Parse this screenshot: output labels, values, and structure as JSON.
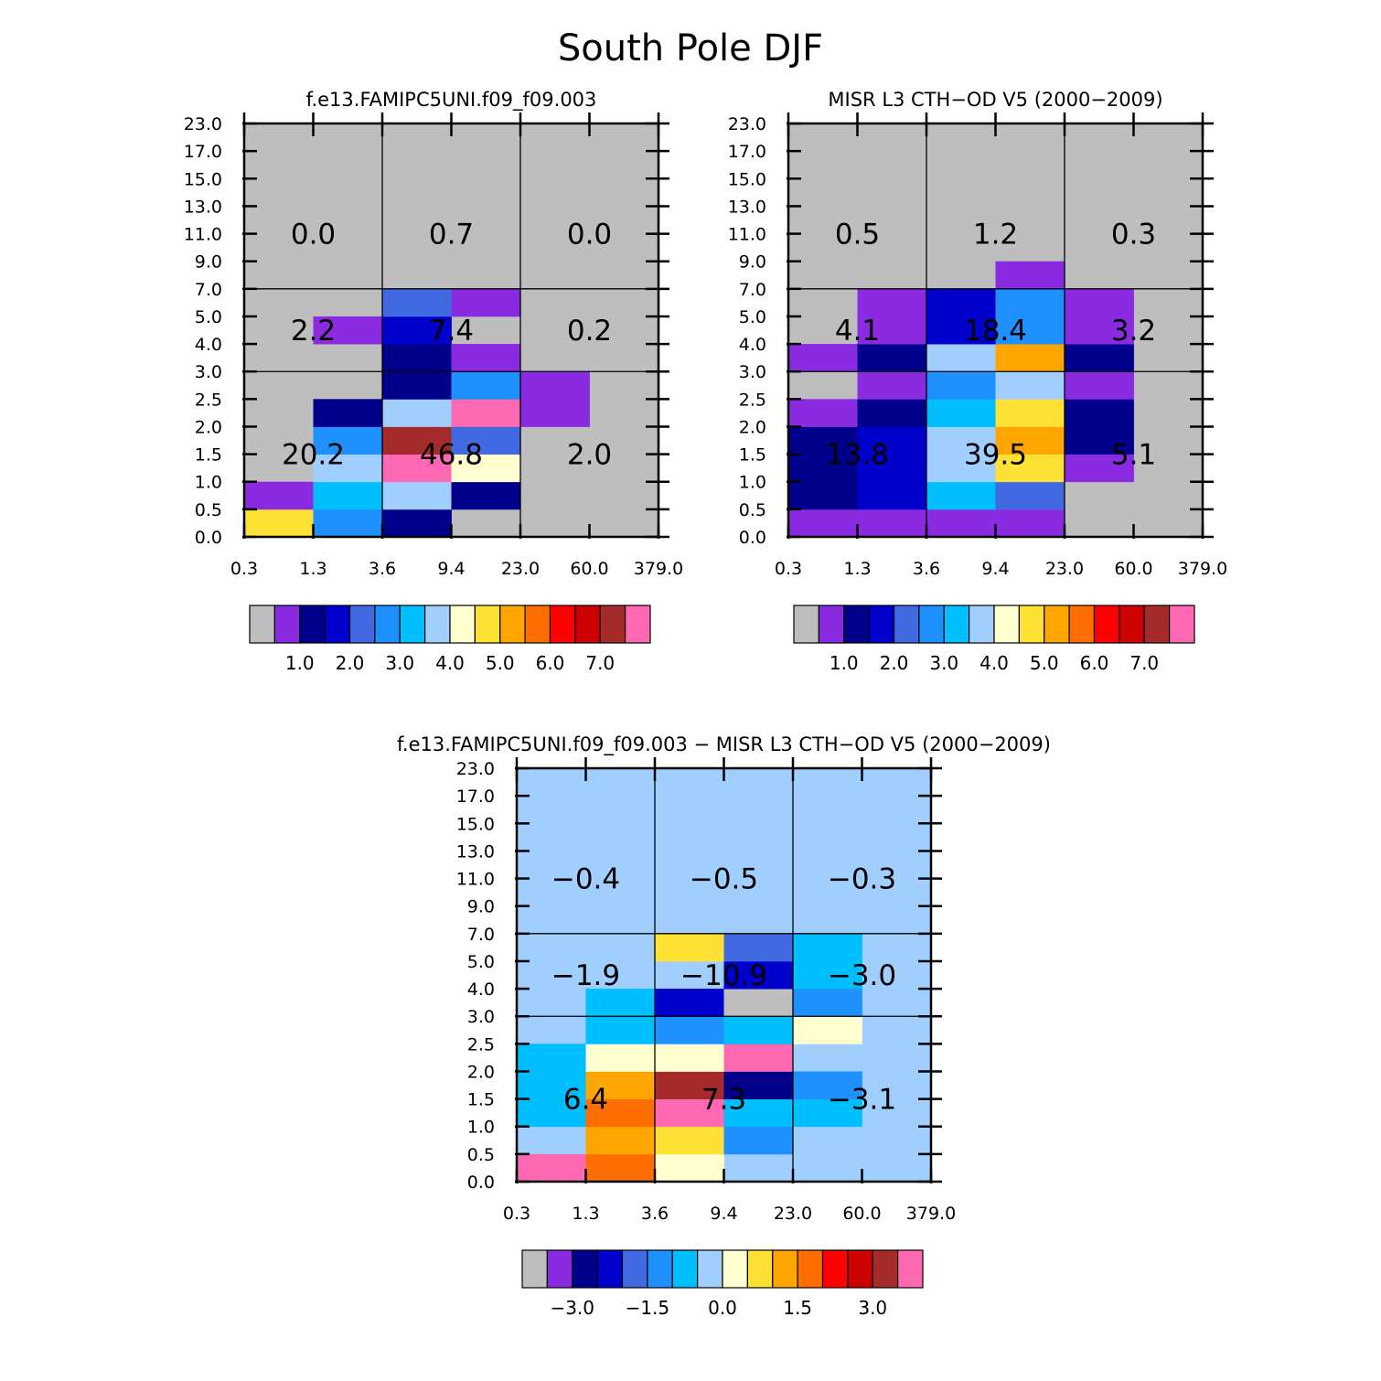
{
  "page_title": "South Pole DJF",
  "colors": {
    "background": "#ffffff",
    "gray": "#bebebe",
    "diff_background": "#a0cfff",
    "palette": [
      "#bebebe",
      "#8a2be2",
      "#00008b",
      "#0000cd",
      "#4169e1",
      "#1e90ff",
      "#00bfff",
      "#a0cfff",
      "#ffffd0",
      "#ffe135",
      "#ffa500",
      "#ff6e00",
      "#ff0000",
      "#cd0000",
      "#a52a2a",
      "#ff69b4"
    ]
  },
  "chart_data": [
    {
      "type": "heatmap",
      "title": "f.e13.FAMIPC5UNI.f09_f09.003",
      "xlabel": "",
      "ylabel": "",
      "x_tick_labels": [
        "0.3",
        "1.3",
        "3.6",
        "9.4",
        "23.0",
        "60.0",
        "379.0"
      ],
      "y_tick_labels": [
        "0.0",
        "0.5",
        "1.0",
        "1.5",
        "2.0",
        "2.5",
        "3.0",
        "4.0",
        "5.0",
        "7.0",
        "9.0",
        "11.0",
        "13.0",
        "15.0",
        "17.0",
        "23.0"
      ],
      "background_color_index": 0,
      "cells": [
        {
          "col": 0,
          "row": 0,
          "c": 9
        },
        {
          "col": 1,
          "row": 0,
          "c": 5
        },
        {
          "col": 2,
          "row": 0,
          "c": 2
        },
        {
          "col": 0,
          "row": 1,
          "c": 1
        },
        {
          "col": 1,
          "row": 1,
          "c": 6
        },
        {
          "col": 2,
          "row": 1,
          "c": 7
        },
        {
          "col": 3,
          "row": 1,
          "c": 2
        },
        {
          "col": 1,
          "row": 2,
          "c": 7
        },
        {
          "col": 2,
          "row": 2,
          "c": 15
        },
        {
          "col": 3,
          "row": 2,
          "c": 8
        },
        {
          "col": 1,
          "row": 3,
          "c": 5
        },
        {
          "col": 2,
          "row": 3,
          "c": 14
        },
        {
          "col": 3,
          "row": 3,
          "c": 4
        },
        {
          "col": 1,
          "row": 4,
          "c": 2
        },
        {
          "col": 2,
          "row": 4,
          "c": 7
        },
        {
          "col": 3,
          "row": 4,
          "c": 15
        },
        {
          "col": 4,
          "row": 4,
          "c": 1
        },
        {
          "col": 2,
          "row": 5,
          "c": 2
        },
        {
          "col": 3,
          "row": 5,
          "c": 5
        },
        {
          "col": 4,
          "row": 5,
          "c": 1
        },
        {
          "col": 2,
          "row": 6,
          "c": 2
        },
        {
          "col": 3,
          "row": 6,
          "c": 1
        },
        {
          "col": 1,
          "row": 7,
          "c": 1
        },
        {
          "col": 2,
          "row": 7,
          "c": 3
        },
        {
          "col": 2,
          "row": 8,
          "c": 4
        },
        {
          "col": 3,
          "row": 8,
          "c": 1
        }
      ],
      "box_values": [
        {
          "x_box": 0,
          "y_box": 0,
          "value": "20.2"
        },
        {
          "x_box": 1,
          "y_box": 0,
          "value": "46.8"
        },
        {
          "x_box": 2,
          "y_box": 0,
          "value": "2.0"
        },
        {
          "x_box": 0,
          "y_box": 1,
          "value": "2.2"
        },
        {
          "x_box": 1,
          "y_box": 1,
          "value": "7.4"
        },
        {
          "x_box": 2,
          "y_box": 1,
          "value": "0.2"
        },
        {
          "x_box": 0,
          "y_box": 2,
          "value": "0.0"
        },
        {
          "x_box": 1,
          "y_box": 2,
          "value": "0.7"
        },
        {
          "x_box": 2,
          "y_box": 2,
          "value": "0.0"
        }
      ],
      "colorbar": {
        "labels": [
          "1.0",
          "2.0",
          "3.0",
          "4.0",
          "5.0",
          "6.0",
          "7.0"
        ]
      }
    },
    {
      "type": "heatmap",
      "title": "MISR L3 CTH-OD V5 (2000-2009)",
      "xlabel": "",
      "ylabel": "",
      "x_tick_labels": [
        "0.3",
        "1.3",
        "3.6",
        "9.4",
        "23.0",
        "60.0",
        "379.0"
      ],
      "y_tick_labels": [
        "0.0",
        "0.5",
        "1.0",
        "1.5",
        "2.0",
        "2.5",
        "3.0",
        "4.0",
        "5.0",
        "7.0",
        "9.0",
        "11.0",
        "13.0",
        "15.0",
        "17.0",
        "23.0"
      ],
      "background_color_index": 0,
      "cells": [
        {
          "col": 0,
          "row": 0,
          "c": 1
        },
        {
          "col": 1,
          "row": 0,
          "c": 1
        },
        {
          "col": 2,
          "row": 0,
          "c": 1
        },
        {
          "col": 3,
          "row": 0,
          "c": 1
        },
        {
          "col": 0,
          "row": 1,
          "c": 2
        },
        {
          "col": 1,
          "row": 1,
          "c": 3
        },
        {
          "col": 2,
          "row": 1,
          "c": 6
        },
        {
          "col": 3,
          "row": 1,
          "c": 4
        },
        {
          "col": 0,
          "row": 2,
          "c": 2
        },
        {
          "col": 1,
          "row": 2,
          "c": 3
        },
        {
          "col": 2,
          "row": 2,
          "c": 7
        },
        {
          "col": 3,
          "row": 2,
          "c": 9
        },
        {
          "col": 4,
          "row": 2,
          "c": 1
        },
        {
          "col": 0,
          "row": 3,
          "c": 2
        },
        {
          "col": 1,
          "row": 3,
          "c": 3
        },
        {
          "col": 2,
          "row": 3,
          "c": 7
        },
        {
          "col": 3,
          "row": 3,
          "c": 10
        },
        {
          "col": 4,
          "row": 3,
          "c": 2
        },
        {
          "col": 0,
          "row": 4,
          "c": 1
        },
        {
          "col": 1,
          "row": 4,
          "c": 2
        },
        {
          "col": 2,
          "row": 4,
          "c": 6
        },
        {
          "col": 3,
          "row": 4,
          "c": 9
        },
        {
          "col": 4,
          "row": 4,
          "c": 2
        },
        {
          "col": 1,
          "row": 5,
          "c": 1
        },
        {
          "col": 2,
          "row": 5,
          "c": 5
        },
        {
          "col": 3,
          "row": 5,
          "c": 7
        },
        {
          "col": 4,
          "row": 5,
          "c": 1
        },
        {
          "col": 0,
          "row": 6,
          "c": 1
        },
        {
          "col": 1,
          "row": 6,
          "c": 2
        },
        {
          "col": 2,
          "row": 6,
          "c": 7
        },
        {
          "col": 3,
          "row": 6,
          "c": 10
        },
        {
          "col": 4,
          "row": 6,
          "c": 2
        },
        {
          "col": 1,
          "row": 7,
          "c": 1
        },
        {
          "col": 2,
          "row": 7,
          "c": 3
        },
        {
          "col": 3,
          "row": 7,
          "c": 5
        },
        {
          "col": 4,
          "row": 7,
          "c": 1
        },
        {
          "col": 1,
          "row": 8,
          "c": 1
        },
        {
          "col": 2,
          "row": 8,
          "c": 3
        },
        {
          "col": 3,
          "row": 8,
          "c": 5
        },
        {
          "col": 4,
          "row": 8,
          "c": 1
        },
        {
          "col": 3,
          "row": 9,
          "c": 1
        }
      ],
      "box_values": [
        {
          "x_box": 0,
          "y_box": 0,
          "value": "13.8"
        },
        {
          "x_box": 1,
          "y_box": 0,
          "value": "39.5"
        },
        {
          "x_box": 2,
          "y_box": 0,
          "value": "5.1"
        },
        {
          "x_box": 0,
          "y_box": 1,
          "value": "4.1"
        },
        {
          "x_box": 1,
          "y_box": 1,
          "value": "18.4"
        },
        {
          "x_box": 2,
          "y_box": 1,
          "value": "3.2"
        },
        {
          "x_box": 0,
          "y_box": 2,
          "value": "0.5"
        },
        {
          "x_box": 1,
          "y_box": 2,
          "value": "1.2"
        },
        {
          "x_box": 2,
          "y_box": 2,
          "value": "0.3"
        }
      ],
      "colorbar": {
        "labels": [
          "1.0",
          "2.0",
          "3.0",
          "4.0",
          "5.0",
          "6.0",
          "7.0"
        ]
      }
    },
    {
      "type": "heatmap",
      "title": "f.e13.FAMIPC5UNI.f09_f09.003 - MISR L3 CTH-OD V5 (2000-2009)",
      "xlabel": "",
      "ylabel": "",
      "x_tick_labels": [
        "0.3",
        "1.3",
        "3.6",
        "9.4",
        "23.0",
        "60.0",
        "379.0"
      ],
      "y_tick_labels": [
        "0.0",
        "0.5",
        "1.0",
        "1.5",
        "2.0",
        "2.5",
        "3.0",
        "4.0",
        "5.0",
        "7.0",
        "9.0",
        "11.0",
        "13.0",
        "15.0",
        "17.0",
        "23.0"
      ],
      "background_color_index": 7,
      "cells": [
        {
          "col": 0,
          "row": 0,
          "c": 15
        },
        {
          "col": 1,
          "row": 0,
          "c": 11
        },
        {
          "col": 2,
          "row": 0,
          "c": 8
        },
        {
          "col": 1,
          "row": 1,
          "c": 10
        },
        {
          "col": 2,
          "row": 1,
          "c": 9
        },
        {
          "col": 3,
          "row": 1,
          "c": 5
        },
        {
          "col": 0,
          "row": 2,
          "c": 6
        },
        {
          "col": 1,
          "row": 2,
          "c": 11
        },
        {
          "col": 2,
          "row": 2,
          "c": 15
        },
        {
          "col": 3,
          "row": 2,
          "c": 6
        },
        {
          "col": 4,
          "row": 2,
          "c": 6
        },
        {
          "col": 0,
          "row": 3,
          "c": 6
        },
        {
          "col": 1,
          "row": 3,
          "c": 10
        },
        {
          "col": 2,
          "row": 3,
          "c": 14
        },
        {
          "col": 3,
          "row": 3,
          "c": 2
        },
        {
          "col": 4,
          "row": 3,
          "c": 5
        },
        {
          "col": 0,
          "row": 4,
          "c": 6
        },
        {
          "col": 1,
          "row": 4,
          "c": 8
        },
        {
          "col": 2,
          "row": 4,
          "c": 8
        },
        {
          "col": 3,
          "row": 4,
          "c": 15
        },
        {
          "col": 1,
          "row": 5,
          "c": 6
        },
        {
          "col": 2,
          "row": 5,
          "c": 5
        },
        {
          "col": 3,
          "row": 5,
          "c": 6
        },
        {
          "col": 4,
          "row": 5,
          "c": 8
        },
        {
          "col": 1,
          "row": 6,
          "c": 6
        },
        {
          "col": 2,
          "row": 6,
          "c": 3
        },
        {
          "col": 3,
          "row": 6,
          "c": 0
        },
        {
          "col": 4,
          "row": 6,
          "c": 5
        },
        {
          "col": 3,
          "row": 7,
          "c": 3
        },
        {
          "col": 4,
          "row": 7,
          "c": 6
        },
        {
          "col": 2,
          "row": 8,
          "c": 9
        },
        {
          "col": 3,
          "row": 8,
          "c": 4
        },
        {
          "col": 4,
          "row": 8,
          "c": 6
        }
      ],
      "box_values": [
        {
          "x_box": 0,
          "y_box": 0,
          "value": "6.4"
        },
        {
          "x_box": 1,
          "y_box": 0,
          "value": "7.3"
        },
        {
          "x_box": 2,
          "y_box": 0,
          "value": "-3.1"
        },
        {
          "x_box": 0,
          "y_box": 1,
          "value": "-1.9"
        },
        {
          "x_box": 1,
          "y_box": 1,
          "value": "-10.9"
        },
        {
          "x_box": 2,
          "y_box": 1,
          "value": "-3.0"
        },
        {
          "x_box": 0,
          "y_box": 2,
          "value": "-0.4"
        },
        {
          "x_box": 1,
          "y_box": 2,
          "value": "-0.5"
        },
        {
          "x_box": 2,
          "y_box": 2,
          "value": "-0.3"
        }
      ],
      "colorbar": {
        "labels": [
          "-3.0",
          "-1.5",
          "0.0",
          "1.5",
          "3.0"
        ]
      }
    }
  ]
}
